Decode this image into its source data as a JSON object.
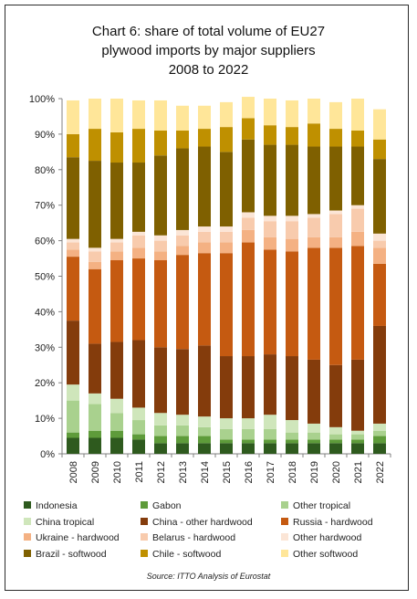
{
  "chart_data": {
    "type": "bar",
    "stacked": true,
    "title": "Chart 6: share of total volume of EU27 plywood imports by major suppliers 2008 to 2022",
    "title_lines": [
      "Chart 6: share of total volume of EU27",
      "plywood imports by major suppliers",
      "2008 to 2022"
    ],
    "xlabel": "",
    "ylabel": "",
    "ylim": [
      0,
      100
    ],
    "yticks": [
      "0%",
      "10%",
      "20%",
      "30%",
      "40%",
      "50%",
      "60%",
      "70%",
      "80%",
      "90%",
      "100%"
    ],
    "grid": false,
    "legend_position": "bottom",
    "categories": [
      "2008",
      "2009",
      "2010",
      "2011",
      "2012",
      "2013",
      "2014",
      "2015",
      "2016",
      "2017",
      "2018",
      "2019",
      "2020",
      "2021",
      "2022"
    ],
    "series": [
      {
        "name": "Indonesia",
        "color": "#2e5a1e",
        "values": [
          4.5,
          4.5,
          4.5,
          4,
          3,
          3,
          3,
          3,
          3,
          3,
          3,
          3,
          3,
          3,
          3
        ]
      },
      {
        "name": "Gabon",
        "color": "#5e9b3a",
        "values": [
          1.5,
          2,
          2,
          1.5,
          2,
          2,
          2,
          1,
          1,
          1,
          1,
          1,
          1,
          1,
          2
        ]
      },
      {
        "name": "Other tropical",
        "color": "#a9d18e",
        "values": [
          9,
          7.5,
          5,
          4,
          3,
          3,
          2.5,
          3,
          3,
          3,
          2,
          2,
          1.5,
          1.5,
          1.5
        ]
      },
      {
        "name": "China tropical",
        "color": "#cfe6bb",
        "values": [
          4.5,
          3,
          4,
          3.5,
          3.5,
          3,
          3,
          3,
          3,
          4,
          3.5,
          2.5,
          2,
          1,
          2
        ]
      },
      {
        "name": "China - other hardwood",
        "color": "#843c0c",
        "values": [
          18,
          14,
          16,
          19,
          18.5,
          18.5,
          20,
          17.5,
          17.5,
          17,
          18,
          18,
          17.5,
          20,
          27.5
        ]
      },
      {
        "name": "Russia - hardwood",
        "color": "#c55a11",
        "values": [
          18,
          21,
          23,
          23,
          24.5,
          26.5,
          26,
          29,
          32,
          29.5,
          29.5,
          31.5,
          33,
          32,
          17.5
        ]
      },
      {
        "name": "Ukraine - hardwood",
        "color": "#f4b183",
        "values": [
          2,
          2,
          2.5,
          3,
          2.5,
          2.5,
          3,
          3,
          3.5,
          3.5,
          3.5,
          3,
          3,
          4,
          4.5
        ]
      },
      {
        "name": "Belarus - hardwood",
        "color": "#f8cbad",
        "values": [
          2,
          3,
          2.5,
          3.5,
          3,
          3,
          3,
          3,
          3.5,
          4.5,
          5,
          5.5,
          6.5,
          6.5,
          2
        ]
      },
      {
        "name": "Other hardwood",
        "color": "#fbe5d6",
        "values": [
          1,
          1,
          1,
          1,
          1.5,
          1.5,
          1.5,
          1.5,
          1.5,
          1.5,
          1.5,
          1,
          1,
          1,
          2
        ]
      },
      {
        "name": "Brazil - softwood",
        "color": "#7f6000",
        "values": [
          23,
          24.5,
          21.5,
          19.5,
          22.5,
          23,
          22.5,
          21,
          20.5,
          20,
          20,
          19,
          18,
          16.5,
          21
        ]
      },
      {
        "name": "Chile - softwood",
        "color": "#bf9000",
        "values": [
          6.5,
          9,
          8.5,
          9.5,
          7,
          5,
          5,
          7,
          6,
          5.5,
          5,
          6.5,
          5,
          4.5,
          5.5
        ]
      },
      {
        "name": "Other softwood",
        "color": "#ffe699",
        "values": [
          9.5,
          8.5,
          9.5,
          8,
          8.5,
          7,
          6.5,
          7,
          6,
          7.5,
          7.5,
          7,
          7.5,
          9,
          8.5
        ]
      }
    ],
    "source": "Source: ITTO Analysis of Eurostat"
  },
  "legend_labels": [
    "Indonesia",
    "Gabon",
    "Other tropical",
    "China tropical",
    "China - other hardwood",
    "Russia - hardwood",
    "Ukraine - hardwood",
    "Belarus - hardwood",
    "Other hardwood",
    "Brazil - softwood",
    "Chile - softwood",
    "Other softwood"
  ]
}
